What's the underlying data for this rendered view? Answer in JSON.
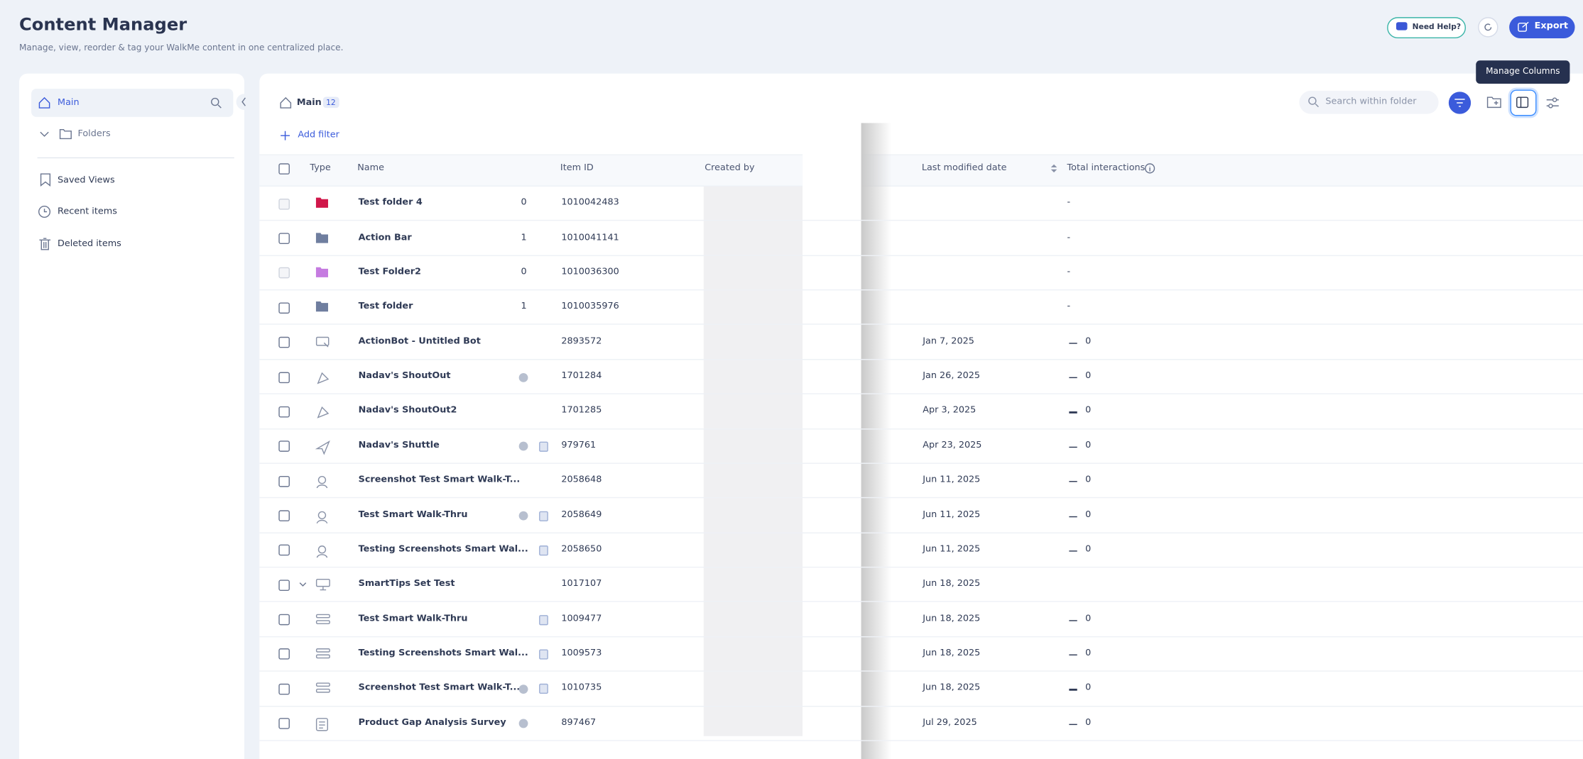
{
  "header": {
    "title": "Content Manager",
    "subtitle": "Manage, view, reorder & tag your WalkMe content in one centralized place.",
    "help_button": "Need Help?",
    "export_button": "Export"
  },
  "sidebar": {
    "items": [
      {
        "label": "Main"
      },
      {
        "label": "Folders"
      },
      {
        "label": "Saved Views"
      },
      {
        "label": "Recent items"
      },
      {
        "label": "Deleted items"
      }
    ]
  },
  "toolbar": {
    "breadcrumb": "Main",
    "count": "12",
    "add_filter": "Add filter",
    "search_placeholder": "Search within folder",
    "tooltip": "Manage Columns"
  },
  "table": {
    "columns": [
      "Type",
      "Name",
      "Item ID",
      "Created by",
      "Last modified date",
      "Total interactions"
    ],
    "rows": [
      {
        "name": "Test folder 4",
        "children": "0",
        "item_id": "1010042483",
        "interactions": "-"
      },
      {
        "name": "Action Bar",
        "children": "1",
        "item_id": "1010041141",
        "interactions": "-"
      },
      {
        "name": "Test Folder2",
        "children": "0",
        "item_id": "1010036300",
        "interactions": "-"
      },
      {
        "name": "Test folder",
        "children": "1",
        "item_id": "1010035976",
        "interactions": "-"
      },
      {
        "name": "ActionBot - Untitled Bot",
        "item_id": "2893572",
        "last_modified": "Jan 7, 2025",
        "interactions": "0"
      },
      {
        "name": "Nadav's ShoutOut",
        "item_id": "1701284",
        "last_modified": "Jan 26, 2025",
        "interactions": "0"
      },
      {
        "name": "Nadav's ShoutOut2",
        "item_id": "1701285",
        "last_modified": "Apr 3, 2025",
        "interactions": "0"
      },
      {
        "name": "Nadav's Shuttle",
        "item_id": "979761",
        "last_modified": "Apr 23, 2025",
        "interactions": "0"
      },
      {
        "name": "Screenshot Test Smart Walk-T...",
        "item_id": "2058648",
        "last_modified": "Jun 11, 2025",
        "interactions": "0"
      },
      {
        "name": "Test Smart Walk-Thru",
        "item_id": "2058649",
        "last_modified": "Jun 11, 2025",
        "interactions": "0"
      },
      {
        "name": "Testing Screenshots Smart Wal...",
        "item_id": "2058650",
        "last_modified": "Jun 11, 2025",
        "interactions": "0"
      },
      {
        "name": "SmartTips Set Test",
        "item_id": "1017107",
        "last_modified": "Jun 18, 2025"
      },
      {
        "name": "Test Smart Walk-Thru",
        "item_id": "1009477",
        "last_modified": "Jun 18, 2025",
        "interactions": "0"
      },
      {
        "name": "Testing Screenshots Smart Wal...",
        "item_id": "1009573",
        "last_modified": "Jun 18, 2025",
        "interactions": "0"
      },
      {
        "name": "Screenshot Test Smart Walk-T...",
        "item_id": "1010735",
        "last_modified": "Jun 18, 2025",
        "interactions": "0"
      },
      {
        "name": "Product Gap Analysis Survey",
        "item_id": "897467",
        "last_modified": "Jul 29, 2025",
        "interactions": "0"
      }
    ]
  }
}
